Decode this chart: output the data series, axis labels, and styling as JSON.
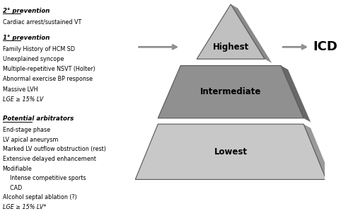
{
  "background_color": "#ffffff",
  "pyramid": {
    "highest": {
      "label": "Highest",
      "color": "#c0c0c0",
      "shadow_color": "#8a8a8a"
    },
    "intermediate": {
      "label": "Intermediate",
      "color": "#909090",
      "shadow_color": "#686868"
    },
    "lowest": {
      "label": "Lowest",
      "color": "#c8c8c8",
      "shadow_color": "#9a9a9a"
    }
  },
  "icd_label": "ICD",
  "arrow_color": "#909090",
  "left_text": {
    "section1_header": "2° prevention",
    "section1_lines": [
      "Cardiac arrest/sustained VT"
    ],
    "section1_italic": [
      false
    ],
    "section2_header": "1° prevention",
    "section2_lines": [
      "Family History of HCM SD",
      "Unexplained syncope",
      "Multiple-repetitive NSVT (Holter)",
      "Abnormal exercise BP response",
      "Massive LVH",
      "LGE ≥ 15% LV"
    ],
    "section2_italic": [
      false,
      false,
      false,
      false,
      false,
      true
    ],
    "section3_header": "Potential arbitrators",
    "section3_lines": [
      "End-stage phase",
      "LV apical aneurysm",
      "Marked LV outflow obstruction (rest)",
      "Extensive delayed enhancement",
      "Modifiable",
      "    Intense competitive sports",
      "    CAD",
      "Alcohol septal ablation (?)",
      "LGE ≥ 15% LV*"
    ],
    "section3_italic": [
      false,
      false,
      false,
      false,
      false,
      false,
      false,
      false,
      true
    ]
  }
}
